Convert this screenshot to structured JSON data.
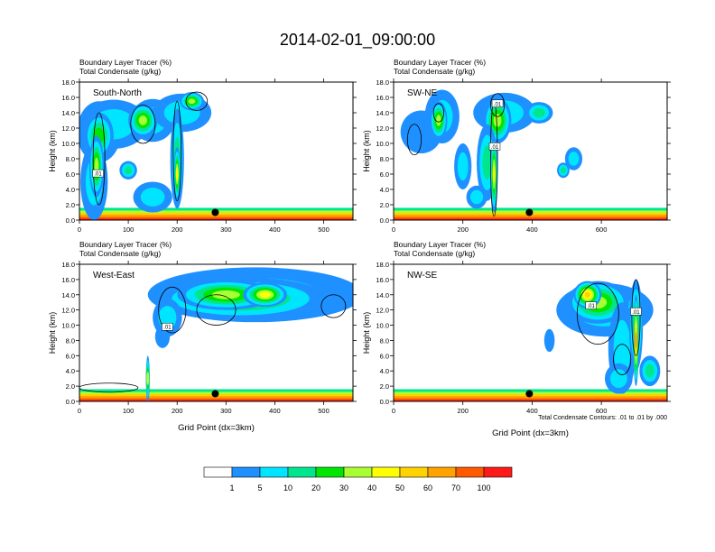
{
  "page_title": "2014-02-01_09:00:00",
  "colors": {
    "scale": [
      "#ffffff",
      "#1e90ff",
      "#00e5ff",
      "#00e68c",
      "#00e600",
      "#aaff33",
      "#ffff00",
      "#ffd200",
      "#ffa200",
      "#ff5a00",
      "#ff1a1a"
    ],
    "contour_line": "#000000",
    "marker": "#000000"
  },
  "chart_data": [
    {
      "id": "south-north",
      "type": "heatmap",
      "panel_label": "South-North",
      "title_line1": "Boundary Layer Tracer   (%)",
      "title_line2": "Total Condensate   (g/kg)",
      "xlabel": "",
      "ylabel": "Height (km)",
      "xlim": [
        0,
        560
      ],
      "ylim": [
        0,
        18
      ],
      "xticks": [
        0,
        100,
        200,
        300,
        400,
        500
      ],
      "yticks": [
        0,
        2,
        4,
        6,
        8,
        10,
        12,
        14,
        16,
        18
      ],
      "ytick_labels": [
        "0.0",
        "2.0",
        "4.0",
        "6.0",
        "8.0",
        "10.0",
        "12.0",
        "14.0",
        "16.0",
        "18.0"
      ],
      "contour_labels": [
        {
          "text": ".01",
          "x": 38,
          "y": 6.1
        }
      ],
      "marker": {
        "x": 278,
        "y": 1.0
      },
      "blobs": [
        {
          "x": 40,
          "y": 11.5,
          "rx": 45,
          "ry": 4.0,
          "v": 1
        },
        {
          "x": 70,
          "y": 12.5,
          "rx": 70,
          "ry": 3.2,
          "v": 2
        },
        {
          "x": 150,
          "y": 13.0,
          "rx": 45,
          "ry": 2.8,
          "v": 2
        },
        {
          "x": 210,
          "y": 14.0,
          "rx": 60,
          "ry": 2.5,
          "v": 2
        },
        {
          "x": 30,
          "y": 5.0,
          "rx": 28,
          "ry": 5.0,
          "v": 2
        },
        {
          "x": 40,
          "y": 11.0,
          "rx": 30,
          "ry": 3.0,
          "v": 4
        },
        {
          "x": 130,
          "y": 13.0,
          "rx": 30,
          "ry": 2.2,
          "v": 5
        },
        {
          "x": 35,
          "y": 7.0,
          "rx": 15,
          "ry": 4.0,
          "v": 5
        },
        {
          "x": 200,
          "y": 8.0,
          "rx": 14,
          "ry": 6.5,
          "v": 3
        },
        {
          "x": 200,
          "y": 6.0,
          "rx": 7,
          "ry": 3.5,
          "v": 6
        },
        {
          "x": 150,
          "y": 3.0,
          "rx": 40,
          "ry": 2.0,
          "v": 2
        },
        {
          "x": 100,
          "y": 6.5,
          "rx": 18,
          "ry": 1.2,
          "v": 3
        },
        {
          "x": 230,
          "y": 15.5,
          "rx": 25,
          "ry": 1.2,
          "v": 5
        }
      ],
      "contours": [
        {
          "x": 200,
          "y": 9.0,
          "rx": 8,
          "ry": 6.5
        },
        {
          "x": 130,
          "y": 12.5,
          "rx": 25,
          "ry": 2.5
        },
        {
          "x": 240,
          "y": 15.5,
          "rx": 22,
          "ry": 1.2
        },
        {
          "x": 40,
          "y": 8.0,
          "rx": 12,
          "ry": 6.0
        }
      ]
    },
    {
      "id": "sw-ne",
      "type": "heatmap",
      "panel_label": "SW-NE",
      "title_line1": "Boundary Layer Tracer   (%)",
      "title_line2": "Total Condensate   (g/kg)",
      "xlabel": "",
      "ylabel": "Height (km)",
      "xlim": [
        0,
        790
      ],
      "ylim": [
        0,
        18
      ],
      "xticks": [
        0,
        200,
        400,
        600
      ],
      "yticks": [
        0,
        2,
        4,
        6,
        8,
        10,
        12,
        14,
        16,
        18
      ],
      "ytick_labels": [
        "0.0",
        "2.0",
        "4.0",
        "6.0",
        "8.0",
        "10.0",
        "12.0",
        "14.0",
        "16.0",
        "18.0"
      ],
      "contour_labels": [
        {
          "text": ".01",
          "x": 292,
          "y": 9.6
        },
        {
          "text": ".01",
          "x": 300,
          "y": 15.2
        }
      ],
      "marker": {
        "x": 392,
        "y": 1.0
      },
      "blobs": [
        {
          "x": 80,
          "y": 11.5,
          "rx": 60,
          "ry": 2.8,
          "v": 1
        },
        {
          "x": 140,
          "y": 13.5,
          "rx": 50,
          "ry": 3.5,
          "v": 2
        },
        {
          "x": 320,
          "y": 14.0,
          "rx": 90,
          "ry": 2.6,
          "v": 2
        },
        {
          "x": 130,
          "y": 13.0,
          "rx": 25,
          "ry": 2.5,
          "v": 5
        },
        {
          "x": 300,
          "y": 13.0,
          "rx": 40,
          "ry": 3.0,
          "v": 5
        },
        {
          "x": 270,
          "y": 7.5,
          "rx": 30,
          "ry": 5.0,
          "v": 3
        },
        {
          "x": 200,
          "y": 7.0,
          "rx": 25,
          "ry": 3.0,
          "v": 2
        },
        {
          "x": 520,
          "y": 8.0,
          "rx": 25,
          "ry": 1.5,
          "v": 2
        },
        {
          "x": 490,
          "y": 6.5,
          "rx": 18,
          "ry": 1.0,
          "v": 3
        },
        {
          "x": 420,
          "y": 14.0,
          "rx": 40,
          "ry": 1.4,
          "v": 3
        },
        {
          "x": 240,
          "y": 3.0,
          "rx": 30,
          "ry": 1.5,
          "v": 2
        },
        {
          "x": 290,
          "y": 6.0,
          "rx": 10,
          "ry": 5.0,
          "v": 6
        }
      ],
      "contours": [
        {
          "x": 290,
          "y": 8.0,
          "rx": 10,
          "ry": 7.5
        },
        {
          "x": 300,
          "y": 15.0,
          "rx": 20,
          "ry": 1.5
        },
        {
          "x": 60,
          "y": 10.5,
          "rx": 20,
          "ry": 2.0
        },
        {
          "x": 130,
          "y": 14.0,
          "rx": 15,
          "ry": 1.2
        }
      ]
    },
    {
      "id": "west-east",
      "type": "heatmap",
      "panel_label": "West-East",
      "title_line1": "Boundary Layer Tracer   (%)",
      "title_line2": "Total Condensate   (g/kg)",
      "xlabel": "Grid Point (dx=3km)",
      "ylabel": "Height (km)",
      "xlim": [
        0,
        560
      ],
      "ylim": [
        0,
        18
      ],
      "xticks": [
        0,
        100,
        200,
        300,
        400,
        500
      ],
      "yticks": [
        0,
        2,
        4,
        6,
        8,
        10,
        12,
        14,
        16,
        18
      ],
      "ytick_labels": [
        "0.0",
        "2.0",
        "4.0",
        "6.0",
        "8.0",
        "10.0",
        "12.0",
        "14.0",
        "16.0",
        "18.0"
      ],
      "contour_labels": [
        {
          "text": ".01",
          "x": 180,
          "y": 9.8
        }
      ],
      "marker": {
        "x": 278,
        "y": 1.0
      },
      "blobs": [
        {
          "x": 360,
          "y": 14.0,
          "rx": 220,
          "ry": 3.6,
          "v": 2
        },
        {
          "x": 330,
          "y": 13.5,
          "rx": 180,
          "ry": 2.8,
          "v": 4
        },
        {
          "x": 300,
          "y": 14.0,
          "rx": 100,
          "ry": 2.0,
          "v": 5
        },
        {
          "x": 180,
          "y": 11.0,
          "rx": 30,
          "ry": 2.5,
          "v": 2
        },
        {
          "x": 170,
          "y": 8.5,
          "rx": 15,
          "ry": 1.5,
          "v": 1
        },
        {
          "x": 140,
          "y": 3.0,
          "rx": 4,
          "ry": 3.0,
          "v": 5
        },
        {
          "x": 380,
          "y": 14.0,
          "rx": 45,
          "ry": 1.6,
          "v": 6
        }
      ],
      "contours": [
        {
          "x": 190,
          "y": 12.0,
          "rx": 28,
          "ry": 3.0
        },
        {
          "x": 280,
          "y": 12.0,
          "rx": 40,
          "ry": 2.0
        },
        {
          "x": 520,
          "y": 12.5,
          "rx": 25,
          "ry": 1.5
        },
        {
          "x": 60,
          "y": 1.8,
          "rx": 60,
          "ry": 0.6
        }
      ]
    },
    {
      "id": "nw-se",
      "type": "heatmap",
      "panel_label": "NW-SE",
      "title_line1": "Boundary Layer Tracer   (%)",
      "title_line2": "Total Condensate   (g/kg)",
      "xlabel": "Grid Point (dx=3km)",
      "ylabel": "Height (km)",
      "xlim": [
        0,
        790
      ],
      "ylim": [
        0,
        18
      ],
      "xticks": [
        0,
        200,
        400,
        600
      ],
      "yticks": [
        0,
        2,
        4,
        6,
        8,
        10,
        12,
        14,
        16,
        18
      ],
      "ytick_labels": [
        "0.0",
        "2.0",
        "4.0",
        "6.0",
        "8.0",
        "10.0",
        "12.0",
        "14.0",
        "16.0",
        "18.0"
      ],
      "contour_labels": [
        {
          "text": ".01",
          "x": 570,
          "y": 12.6
        },
        {
          "text": ".01",
          "x": 700,
          "y": 11.8
        }
      ],
      "marker": {
        "x": 392,
        "y": 1.0
      },
      "note": "Total Condensate Contours: .01 to .01 by .000",
      "blobs": [
        {
          "x": 610,
          "y": 12.0,
          "rx": 140,
          "ry": 3.5,
          "v": 2
        },
        {
          "x": 590,
          "y": 13.0,
          "rx": 90,
          "ry": 2.8,
          "v": 5
        },
        {
          "x": 560,
          "y": 14.0,
          "rx": 40,
          "ry": 1.8,
          "v": 7
        },
        {
          "x": 660,
          "y": 7.0,
          "rx": 40,
          "ry": 6.0,
          "v": 2
        },
        {
          "x": 700,
          "y": 10.0,
          "rx": 20,
          "ry": 6.0,
          "v": 4
        },
        {
          "x": 700,
          "y": 8.0,
          "rx": 8,
          "ry": 6.0,
          "v": 8
        },
        {
          "x": 740,
          "y": 4.0,
          "rx": 30,
          "ry": 2.0,
          "v": 3
        },
        {
          "x": 650,
          "y": 3.0,
          "rx": 40,
          "ry": 2.0,
          "v": 2
        },
        {
          "x": 450,
          "y": 8.0,
          "rx": 15,
          "ry": 1.5,
          "v": 1
        }
      ],
      "contours": [
        {
          "x": 590,
          "y": 11.5,
          "rx": 60,
          "ry": 4.0
        },
        {
          "x": 700,
          "y": 11.0,
          "rx": 12,
          "ry": 5.0
        },
        {
          "x": 660,
          "y": 5.5,
          "rx": 25,
          "ry": 2.0
        }
      ]
    }
  ],
  "colorbar": {
    "labels": [
      "1",
      "5",
      "10",
      "20",
      "30",
      "40",
      "50",
      "60",
      "70",
      "100"
    ]
  }
}
